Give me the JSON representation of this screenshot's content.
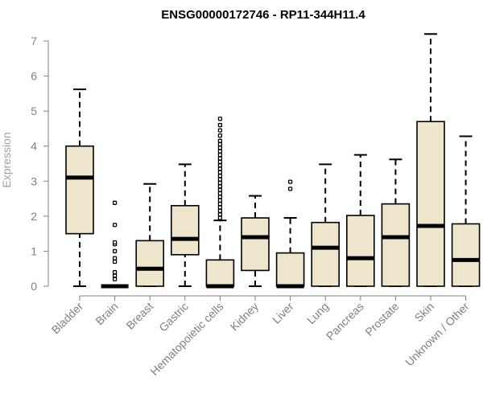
{
  "chart_data": {
    "type": "box",
    "title": "ENSG00000172746 - RP11-344H11.4",
    "ylabel": "Expression",
    "xlabel": "",
    "ylim": [
      0,
      7.3
    ],
    "yticks": [
      0,
      1,
      2,
      3,
      4,
      5,
      6,
      7
    ],
    "box_fill": "#ede6cc",
    "median_color": "#000000",
    "categories": [
      "Bladder",
      "Brain",
      "Breast",
      "Gastric",
      "Hematopoietic cells",
      "Kidney",
      "Liver",
      "Lung",
      "Pancreas",
      "Prostate",
      "Skin",
      "Unknown / Other"
    ],
    "boxes": [
      {
        "whisker_low": 0,
        "q1": 1.5,
        "median": 3.1,
        "q3": 4.0,
        "whisker_high": 5.62,
        "outliers": []
      },
      {
        "whisker_low": 0,
        "q1": 0,
        "median": 0,
        "q3": 0,
        "whisker_high": 0,
        "outliers": [
          0.2,
          0.3,
          0.4,
          0.7,
          0.8,
          1.0,
          1.2,
          1.25,
          1.75,
          2.38
        ]
      },
      {
        "whisker_low": 0,
        "q1": 0,
        "median": 0.5,
        "q3": 1.3,
        "whisker_high": 2.92,
        "outliers": []
      },
      {
        "whisker_low": 0,
        "q1": 0.9,
        "median": 1.35,
        "q3": 2.3,
        "whisker_high": 3.48,
        "outliers": []
      },
      {
        "whisker_low": 0,
        "q1": 0,
        "median": 0,
        "q3": 0.75,
        "whisker_high": 1.88,
        "outliers": [
          1.95,
          2.05,
          2.15,
          2.25,
          2.35,
          2.45,
          2.55,
          2.65,
          2.75,
          2.85,
          2.95,
          3.05,
          3.15,
          3.25,
          3.35,
          3.45,
          3.55,
          3.65,
          3.75,
          3.85,
          3.95,
          4.05,
          4.15,
          4.3,
          4.45,
          4.6,
          4.78
        ]
      },
      {
        "whisker_low": 0,
        "q1": 0.45,
        "median": 1.4,
        "q3": 1.95,
        "whisker_high": 2.58,
        "outliers": []
      },
      {
        "whisker_low": 0,
        "q1": 0,
        "median": 0,
        "q3": 0.95,
        "whisker_high": 1.95,
        "outliers": [
          2.78,
          2.98
        ]
      },
      {
        "whisker_low": 0,
        "q1": 0,
        "median": 1.1,
        "q3": 1.82,
        "whisker_high": 3.48,
        "outliers": []
      },
      {
        "whisker_low": 0,
        "q1": 0,
        "median": 0.8,
        "q3": 2.02,
        "whisker_high": 3.75,
        "outliers": []
      },
      {
        "whisker_low": 0,
        "q1": 0,
        "median": 1.4,
        "q3": 2.35,
        "whisker_high": 3.62,
        "outliers": []
      },
      {
        "whisker_low": 0,
        "q1": 0,
        "median": 1.72,
        "q3": 4.7,
        "whisker_high": 7.2,
        "outliers": []
      },
      {
        "whisker_low": 0,
        "q1": 0,
        "median": 0.75,
        "q3": 1.78,
        "whisker_high": 4.28,
        "outliers": []
      }
    ]
  }
}
